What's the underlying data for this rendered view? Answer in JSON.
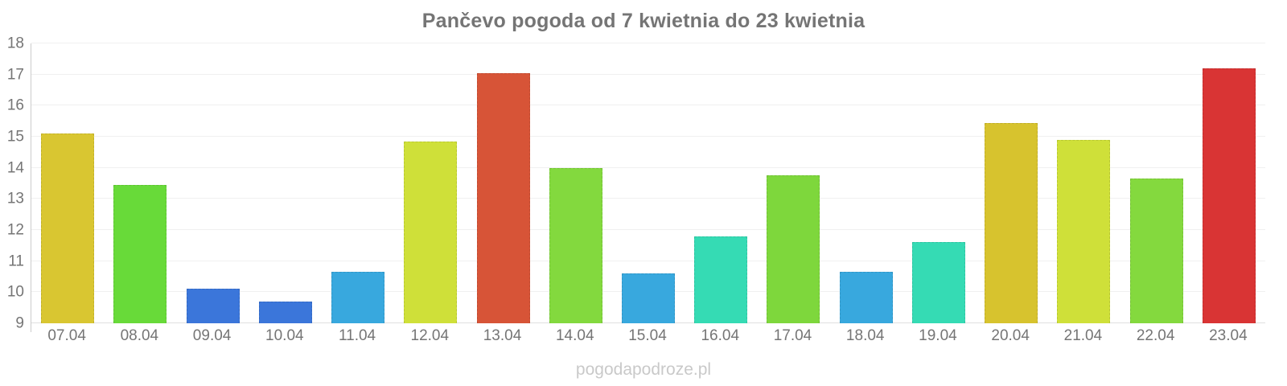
{
  "title": "Pančevo pogoda od 7 kwietnia do 23 kwietnia",
  "watermark": "pogodapodroze.pl",
  "colors": {
    "title_text": "#757575",
    "axis_text": "#757575",
    "gridline": "#f0f0f0",
    "axis_line": "#cccccc",
    "watermark_text": "#c9c9c9",
    "background": "#ffffff"
  },
  "chart_data": {
    "type": "bar",
    "title": "Pančevo pogoda od 7 kwietnia do 23 kwietnia",
    "xlabel": "",
    "ylabel": "",
    "categories": [
      "07.04",
      "08.04",
      "09.04",
      "10.04",
      "11.04",
      "12.04",
      "13.04",
      "14.04",
      "15.04",
      "16.04",
      "17.04",
      "18.04",
      "19.04",
      "20.04",
      "21.04",
      "22.04",
      "23.04"
    ],
    "values": [
      15.1,
      13.45,
      10.1,
      9.7,
      10.65,
      14.85,
      17.05,
      14.0,
      10.6,
      11.8,
      13.75,
      10.65,
      11.6,
      15.45,
      14.9,
      13.65,
      17.2
    ],
    "bar_colors": [
      "#d9c631",
      "#68da39",
      "#3b76da",
      "#3b76da",
      "#38a8de",
      "#cfe039",
      "#d75437",
      "#83d93e",
      "#38a8de",
      "#35dbb4",
      "#7ed73c",
      "#38a8de",
      "#35dbb4",
      "#d7c32e",
      "#cfe039",
      "#84d93e",
      "#d93434"
    ],
    "ylim": [
      9,
      18
    ],
    "yticks": [
      9,
      10,
      11,
      12,
      13,
      14,
      15,
      16,
      17,
      18
    ],
    "grid": true,
    "legend": false
  }
}
